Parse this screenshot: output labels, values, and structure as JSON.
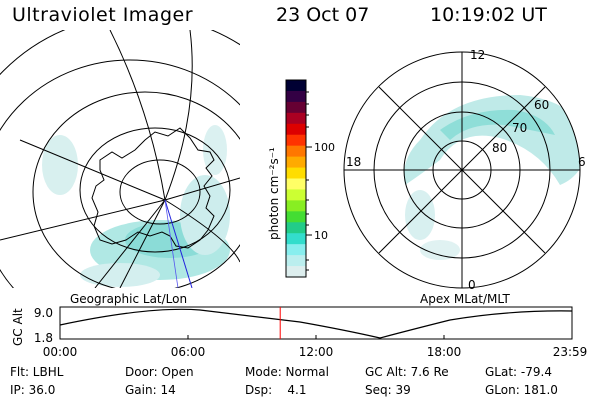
{
  "header": {
    "title": "Ultraviolet Imager",
    "date": "23 Oct 07",
    "time": "10:19:02 UT"
  },
  "geo_panel": {
    "label": "Geographic Lat/Lon"
  },
  "polar_panel": {
    "label": "Apex MLat/MLT",
    "mlt_labels": [
      "12",
      "18",
      "6",
      "0"
    ],
    "lat_labels": [
      "60",
      "70",
      "80"
    ]
  },
  "colorbar": {
    "unit_label": "photon cm⁻²s⁻¹",
    "tick_labels": [
      "100",
      "10"
    ],
    "colors": [
      "#000033",
      "#330044",
      "#660033",
      "#aa0022",
      "#dd0000",
      "#ff3300",
      "#ff7700",
      "#ffaa00",
      "#ffdd00",
      "#ffff66",
      "#ccff33",
      "#88ee22",
      "#44dd33",
      "#22cc88",
      "#33ddcc",
      "#88eeee",
      "#bbeeee",
      "#ddeeee"
    ]
  },
  "orbit_plot": {
    "ylabel": "GC Alt",
    "y_ticks": [
      "9.0",
      "1.8"
    ],
    "x_ticks": [
      "00:00",
      "06:00",
      "12:00",
      "18:00",
      "23:59"
    ],
    "current_time_hours": 10.32
  },
  "status": {
    "flt": "Flt: LBHL",
    "door": "Door: Open",
    "mode": "Mode: Normal",
    "gc_alt": "GC Alt: 7.6 Re",
    "glat": "GLat: -79.4",
    "ip": "IP: 36.0",
    "gain": "Gain: 14",
    "dsp": "Dsp:    4.1",
    "seq": "Seq: 39",
    "glon": "GLon: 181.0"
  },
  "colors": {
    "aurora_light": "#c8ecec",
    "aurora_mid": "#8fe0da",
    "current_time_line": "#ff0000",
    "track_line": "#2222dd"
  }
}
